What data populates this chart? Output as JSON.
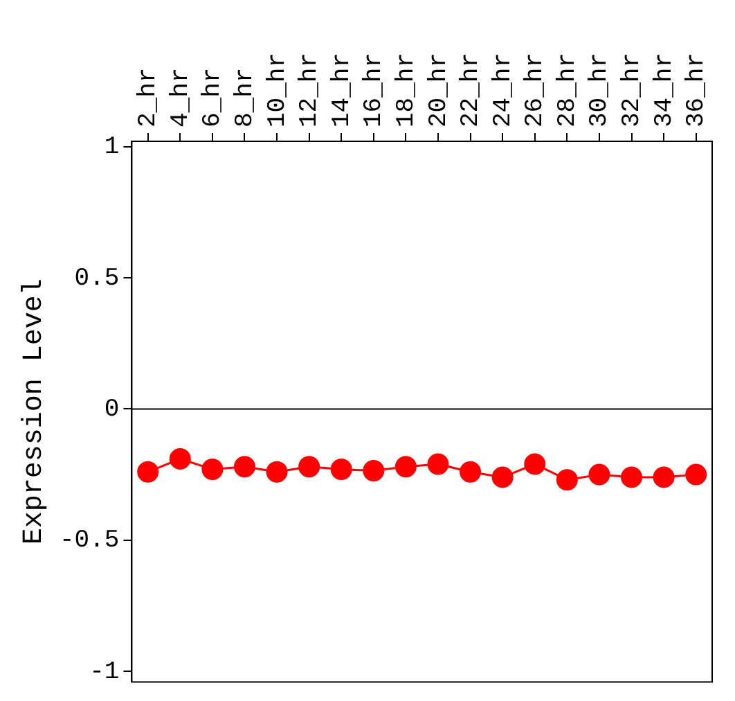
{
  "chart_data": {
    "type": "line",
    "ylabel": "Expression Level",
    "categories": [
      "2_hr",
      "4_hr",
      "6_hr",
      "8_hr",
      "10_hr",
      "12_hr",
      "14_hr",
      "16_hr",
      "18_hr",
      "20_hr",
      "22_hr",
      "24_hr",
      "26_hr",
      "28_hr",
      "30_hr",
      "32_hr",
      "34_hr",
      "36_hr"
    ],
    "series": [
      {
        "color": "#ff0000",
        "values": [
          -0.24,
          -0.19,
          -0.23,
          -0.22,
          -0.24,
          -0.22,
          -0.23,
          -0.235,
          -0.22,
          -0.21,
          -0.24,
          -0.26,
          -0.21,
          -0.27,
          -0.25,
          -0.26,
          -0.26,
          -0.25
        ]
      }
    ],
    "ylim": [
      -1.04,
      1.02
    ],
    "yticks": [
      -1,
      -0.5,
      0,
      0.5,
      1
    ],
    "ref_lines": [
      {
        "axis": "y",
        "value": 0,
        "color": "#000000"
      }
    ],
    "grid": false,
    "legend": false,
    "marker": "circle",
    "line_style": "solid"
  }
}
